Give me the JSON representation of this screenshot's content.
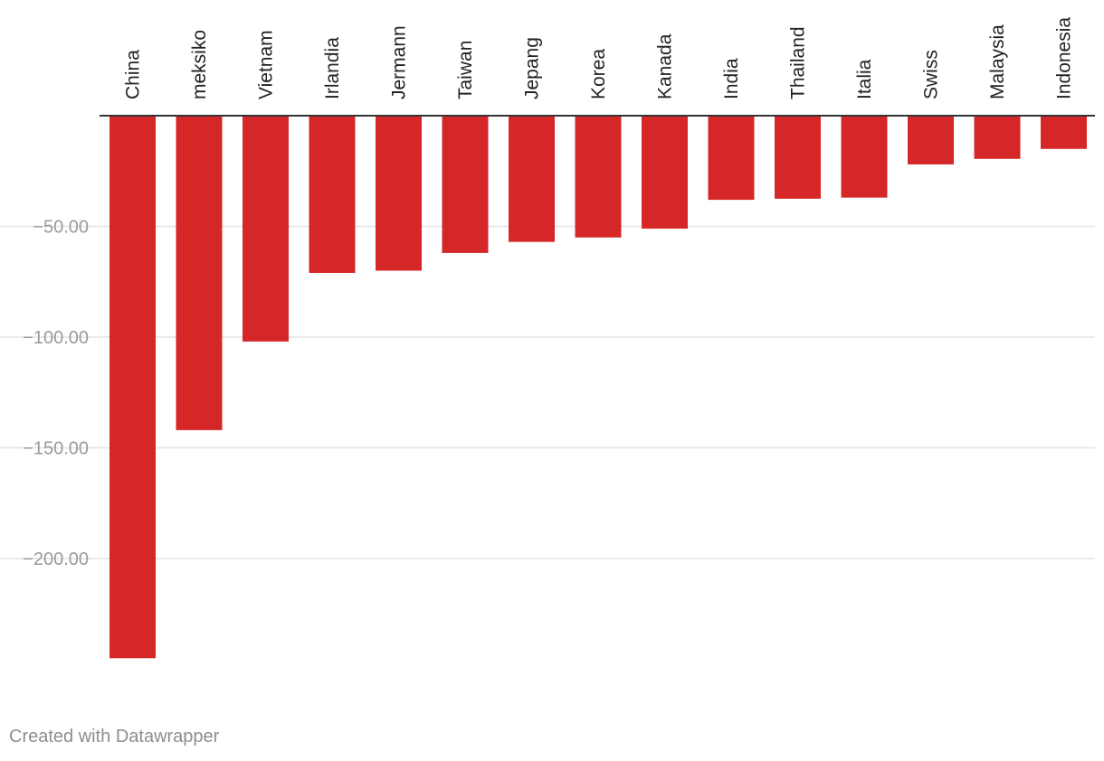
{
  "chart_data": {
    "type": "bar",
    "orientation": "vertical",
    "categories": [
      "China",
      "meksiko",
      "Vietnam",
      "Irlandia",
      "Jermann",
      "Taiwan",
      "Jepang",
      "Korea",
      "Kanada",
      "India",
      "Thailand",
      "Italia",
      "Swiss",
      "Malaysia",
      "Indonesia"
    ],
    "values": [
      -245,
      -142,
      -102,
      -71,
      -70,
      -62,
      -57,
      -55,
      -51,
      -38,
      -37.5,
      -37,
      -22,
      -19.5,
      -15
    ],
    "ylim": [
      -255,
      0
    ],
    "yticks": [
      -50,
      -100,
      -150,
      -200
    ],
    "ytick_labels": [
      "−50.00",
      "−100.00",
      "−150.00",
      "−200.00"
    ],
    "title": "",
    "xlabel": "",
    "ylabel": "",
    "grid": true,
    "category_label_position": "top, rotated",
    "bar_color": "#d62728"
  },
  "footer": {
    "credit": "Created with Datawrapper"
  }
}
